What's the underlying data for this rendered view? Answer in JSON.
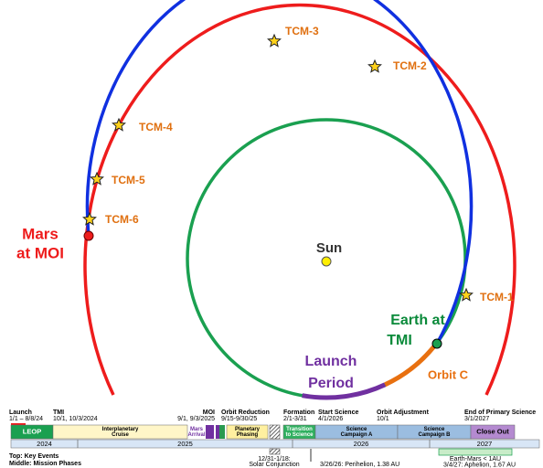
{
  "orbit_diagram": {
    "tcm": [
      "TCM-3",
      "TCM-2",
      "TCM-4",
      "TCM-5",
      "TCM-6",
      "TCM-1"
    ],
    "mars": [
      "Mars",
      "at MOI"
    ],
    "sun": "Sun",
    "earth": [
      "Earth at",
      "TMI"
    ],
    "launch_period": [
      "Launch",
      "Period"
    ],
    "orbit_c": "Orbit C"
  },
  "timeline": {
    "events": [
      {
        "name": "Launch",
        "date": "1/1 – 8/8/24"
      },
      {
        "name": "TMI",
        "date": "10/1, 10/3/2024"
      },
      {
        "name": "MOI",
        "date": "9/1, 9/3/2025"
      },
      {
        "name": "Orbit Reduction",
        "date": "9/15-9/30/25"
      },
      {
        "name": "Formation",
        "date": "2/1-3/31"
      },
      {
        "name": "Start Science",
        "date": "4/1/2026"
      },
      {
        "name": "Orbit Adjustment",
        "date": "10/1"
      },
      {
        "name": "End of Primary Science",
        "date": "3/1/2027"
      }
    ],
    "phases": [
      {
        "lines": [
          "LEOP"
        ]
      },
      {
        "lines": [
          "Interplanetary",
          "Cruise"
        ]
      },
      {
        "lines": [
          "Mars",
          "Arrival"
        ]
      },
      {
        "lines": [
          "Planetary",
          "Phasing"
        ]
      },
      {
        "lines": [
          "Transition",
          "to Science"
        ]
      },
      {
        "lines": [
          "Science",
          "Campaign A"
        ]
      },
      {
        "lines": [
          "Science",
          "Campaign B"
        ]
      },
      {
        "lines": [
          "Close Out"
        ]
      }
    ],
    "years": [
      "2024",
      "2025",
      "2026",
      "2027"
    ],
    "conjunction": [
      "12/31-1/18:",
      "Solar Conjunction"
    ],
    "perihelion": "3/26/26: Perihelion, 1.38 AU",
    "earth_mars": "Earth-Mars < 1AU",
    "aphelion": "3/4/27: Aphelion, 1.67 AU",
    "legend": [
      "Top:  Key Events",
      "Middle:  Mission Phases"
    ]
  }
}
